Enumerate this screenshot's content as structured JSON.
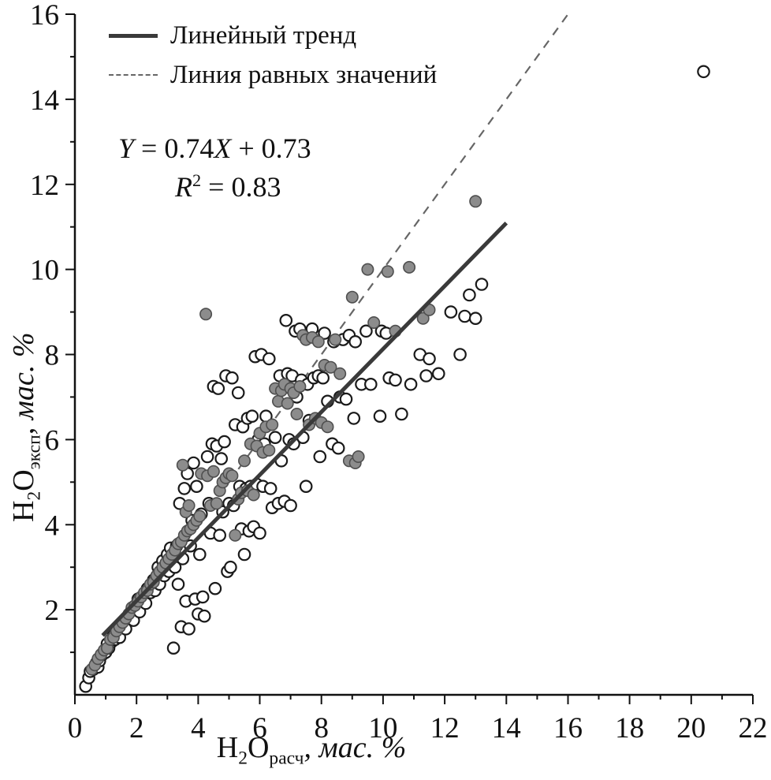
{
  "figure": {
    "legend": {
      "trend_label": "Линейный тренд",
      "identity_label": "Линия равных значений"
    },
    "equation": {
      "y_var": "Y",
      "first": " = 0.74",
      "x_var": "X",
      "second": " + 0.73",
      "r_var": "R",
      "r_exp": "2",
      "r_rest": " = 0.83"
    },
    "x_axis_title": {
      "element": "H",
      "sub_two": "2",
      "oxygen": "O",
      "subscript": "расч",
      "units": ", мас. %"
    },
    "y_axis_title": {
      "element": "H",
      "sub_two": "2",
      "oxygen": "O",
      "subscript": "эксп",
      "units": ", мас. %"
    }
  },
  "chart_data": {
    "type": "scatter",
    "title": "",
    "xlabel": "H2O расч, мас. %",
    "ylabel": "H2O эксп, мас. %",
    "xlim": [
      0,
      22
    ],
    "ylim": [
      0,
      16
    ],
    "grid": false,
    "legend_position": "upper-left",
    "axis_color": "#111111",
    "x_tick_labels": [
      "0",
      "2",
      "4",
      "6",
      "8",
      "10",
      "12",
      "14",
      "16",
      "18",
      "20",
      "22"
    ],
    "y_tick_labels": [
      "2",
      "4",
      "6",
      "8",
      "10",
      "12",
      "14",
      "16"
    ],
    "trend_line": {
      "label": "Линейный тренд",
      "slope": 0.74,
      "intercept": 0.73,
      "r_squared": 0.83,
      "x_range": [
        0.9,
        14.0
      ],
      "color": "#3a3a3a"
    },
    "identity_line": {
      "label": "Линия равных значений",
      "x_range": [
        0.2,
        16.0
      ],
      "style": "dashed",
      "color": "#666666"
    },
    "series": [
      {
        "name": "open_circles",
        "marker": {
          "shape": "circle",
          "fill": "#ffffff",
          "stroke": "#1a1a1a"
        },
        "points": [
          [
            0.35,
            0.2
          ],
          [
            0.45,
            0.4
          ],
          [
            0.5,
            0.55
          ],
          [
            0.6,
            0.6
          ],
          [
            0.7,
            0.75
          ],
          [
            0.75,
            0.65
          ],
          [
            0.8,
            0.8
          ],
          [
            0.9,
            0.95
          ],
          [
            1.0,
            1.0
          ],
          [
            1.05,
            1.2
          ],
          [
            1.1,
            1.1
          ],
          [
            1.2,
            1.25
          ],
          [
            1.25,
            1.4
          ],
          [
            1.3,
            1.3
          ],
          [
            1.4,
            1.5
          ],
          [
            1.45,
            1.35
          ],
          [
            1.5,
            1.6
          ],
          [
            1.6,
            1.7
          ],
          [
            1.65,
            1.55
          ],
          [
            1.7,
            1.8
          ],
          [
            1.8,
            1.9
          ],
          [
            1.85,
            2.0
          ],
          [
            1.9,
            1.75
          ],
          [
            2.0,
            2.1
          ],
          [
            2.05,
            2.25
          ],
          [
            2.1,
            1.95
          ],
          [
            2.2,
            2.3
          ],
          [
            2.3,
            2.15
          ],
          [
            2.35,
            2.5
          ],
          [
            2.45,
            2.4
          ],
          [
            2.55,
            2.7
          ],
          [
            2.6,
            2.45
          ],
          [
            2.7,
            3.0
          ],
          [
            2.75,
            2.6
          ],
          [
            2.85,
            3.15
          ],
          [
            2.9,
            2.8
          ],
          [
            3.0,
            3.3
          ],
          [
            3.05,
            2.9
          ],
          [
            3.1,
            3.45
          ],
          [
            3.2,
            1.1
          ],
          [
            3.25,
            3.0
          ],
          [
            3.3,
            3.5
          ],
          [
            3.35,
            2.6
          ],
          [
            3.4,
            4.5
          ],
          [
            3.45,
            1.6
          ],
          [
            3.5,
            3.2
          ],
          [
            3.55,
            4.85
          ],
          [
            3.6,
            2.2
          ],
          [
            3.65,
            5.2
          ],
          [
            3.7,
            1.55
          ],
          [
            3.75,
            3.5
          ],
          [
            3.8,
            4.1
          ],
          [
            3.85,
            5.45
          ],
          [
            3.9,
            2.25
          ],
          [
            3.95,
            4.9
          ],
          [
            4.0,
            1.9
          ],
          [
            4.05,
            3.3
          ],
          [
            4.1,
            4.25
          ],
          [
            4.15,
            2.3
          ],
          [
            4.2,
            1.85
          ],
          [
            4.3,
            5.6
          ],
          [
            4.35,
            4.5
          ],
          [
            4.4,
            3.8
          ],
          [
            4.45,
            5.9
          ],
          [
            4.5,
            7.25
          ],
          [
            4.55,
            2.5
          ],
          [
            4.6,
            5.85
          ],
          [
            4.65,
            7.2
          ],
          [
            4.7,
            3.75
          ],
          [
            4.75,
            5.55
          ],
          [
            4.8,
            4.3
          ],
          [
            4.85,
            5.95
          ],
          [
            4.9,
            7.5
          ],
          [
            4.95,
            2.9
          ],
          [
            5.0,
            4.5
          ],
          [
            5.05,
            3.0
          ],
          [
            5.1,
            7.45
          ],
          [
            5.15,
            4.45
          ],
          [
            5.2,
            6.35
          ],
          [
            5.3,
            7.1
          ],
          [
            5.35,
            4.9
          ],
          [
            5.4,
            3.9
          ],
          [
            5.45,
            6.3
          ],
          [
            5.5,
            3.3
          ],
          [
            5.55,
            4.85
          ],
          [
            5.6,
            6.5
          ],
          [
            5.65,
            3.85
          ],
          [
            5.7,
            4.9
          ],
          [
            5.75,
            6.55
          ],
          [
            5.8,
            3.95
          ],
          [
            5.85,
            7.95
          ],
          [
            5.9,
            4.95
          ],
          [
            5.95,
            6.0
          ],
          [
            6.0,
            3.8
          ],
          [
            6.05,
            8.0
          ],
          [
            6.1,
            4.9
          ],
          [
            6.15,
            5.9
          ],
          [
            6.2,
            6.55
          ],
          [
            6.3,
            7.9
          ],
          [
            6.35,
            4.85
          ],
          [
            6.4,
            4.4
          ],
          [
            6.5,
            6.05
          ],
          [
            6.6,
            4.5
          ],
          [
            6.65,
            7.5
          ],
          [
            6.7,
            5.5
          ],
          [
            6.8,
            4.55
          ],
          [
            6.85,
            8.8
          ],
          [
            6.9,
            7.55
          ],
          [
            6.95,
            6.0
          ],
          [
            7.0,
            4.45
          ],
          [
            7.05,
            7.5
          ],
          [
            7.1,
            5.9
          ],
          [
            7.15,
            8.55
          ],
          [
            7.2,
            7.0
          ],
          [
            7.3,
            8.6
          ],
          [
            7.35,
            7.4
          ],
          [
            7.4,
            6.05
          ],
          [
            7.5,
            4.9
          ],
          [
            7.55,
            7.3
          ],
          [
            7.6,
            6.45
          ],
          [
            7.7,
            8.6
          ],
          [
            7.75,
            7.45
          ],
          [
            7.9,
            7.5
          ],
          [
            7.95,
            5.6
          ],
          [
            8.05,
            7.45
          ],
          [
            8.1,
            8.5
          ],
          [
            8.2,
            6.9
          ],
          [
            8.35,
            5.9
          ],
          [
            8.4,
            8.3
          ],
          [
            8.55,
            5.8
          ],
          [
            8.6,
            7.0
          ],
          [
            8.7,
            8.35
          ],
          [
            8.8,
            6.95
          ],
          [
            8.9,
            8.45
          ],
          [
            9.05,
            6.5
          ],
          [
            9.1,
            8.3
          ],
          [
            9.3,
            7.3
          ],
          [
            9.45,
            8.55
          ],
          [
            9.6,
            7.3
          ],
          [
            9.9,
            6.55
          ],
          [
            9.95,
            8.55
          ],
          [
            10.1,
            8.5
          ],
          [
            10.2,
            7.45
          ],
          [
            10.4,
            7.4
          ],
          [
            10.6,
            6.6
          ],
          [
            10.9,
            7.3
          ],
          [
            11.2,
            8.0
          ],
          [
            11.4,
            7.5
          ],
          [
            11.5,
            7.9
          ],
          [
            11.8,
            7.55
          ],
          [
            12.2,
            9.0
          ],
          [
            12.5,
            8.0
          ],
          [
            12.65,
            8.9
          ],
          [
            12.8,
            9.4
          ],
          [
            13.0,
            8.85
          ],
          [
            13.2,
            9.65
          ],
          [
            20.4,
            14.65
          ]
        ]
      },
      {
        "name": "filled_circles",
        "marker": {
          "shape": "circle",
          "fill": "#8c8c8c",
          "stroke": "#4f4f4f"
        },
        "points": [
          [
            0.55,
            0.6
          ],
          [
            0.65,
            0.7
          ],
          [
            0.75,
            0.85
          ],
          [
            0.85,
            0.95
          ],
          [
            0.95,
            1.05
          ],
          [
            1.05,
            1.1
          ],
          [
            1.15,
            1.3
          ],
          [
            1.25,
            1.35
          ],
          [
            1.35,
            1.5
          ],
          [
            1.45,
            1.6
          ],
          [
            1.55,
            1.7
          ],
          [
            1.65,
            1.8
          ],
          [
            1.75,
            1.9
          ],
          [
            1.85,
            2.05
          ],
          [
            1.95,
            2.1
          ],
          [
            2.05,
            2.2
          ],
          [
            2.15,
            2.3
          ],
          [
            2.25,
            2.4
          ],
          [
            2.35,
            2.45
          ],
          [
            2.45,
            2.6
          ],
          [
            2.55,
            2.65
          ],
          [
            2.65,
            2.8
          ],
          [
            2.75,
            2.9
          ],
          [
            2.85,
            3.0
          ],
          [
            2.95,
            3.1
          ],
          [
            3.05,
            3.2
          ],
          [
            3.15,
            3.3
          ],
          [
            3.25,
            3.4
          ],
          [
            3.35,
            3.55
          ],
          [
            3.45,
            3.6
          ],
          [
            3.55,
            3.75
          ],
          [
            3.65,
            3.85
          ],
          [
            3.75,
            3.9
          ],
          [
            3.85,
            4.0
          ],
          [
            3.95,
            4.1
          ],
          [
            3.5,
            5.4
          ],
          [
            3.6,
            4.3
          ],
          [
            3.7,
            4.45
          ],
          [
            4.05,
            4.2
          ],
          [
            4.1,
            5.2
          ],
          [
            4.25,
            8.95
          ],
          [
            4.3,
            5.15
          ],
          [
            4.4,
            4.45
          ],
          [
            4.5,
            5.25
          ],
          [
            4.6,
            4.5
          ],
          [
            4.7,
            4.8
          ],
          [
            4.8,
            5.0
          ],
          [
            4.9,
            5.1
          ],
          [
            5.0,
            5.2
          ],
          [
            5.1,
            5.15
          ],
          [
            5.2,
            3.75
          ],
          [
            5.3,
            4.6
          ],
          [
            5.4,
            4.75
          ],
          [
            5.5,
            5.5
          ],
          [
            5.6,
            4.8
          ],
          [
            5.7,
            5.9
          ],
          [
            5.8,
            4.7
          ],
          [
            5.9,
            5.85
          ],
          [
            6.0,
            6.15
          ],
          [
            6.1,
            5.7
          ],
          [
            6.2,
            6.3
          ],
          [
            6.3,
            5.75
          ],
          [
            6.4,
            6.35
          ],
          [
            6.5,
            7.2
          ],
          [
            6.6,
            6.9
          ],
          [
            6.7,
            7.15
          ],
          [
            6.8,
            7.3
          ],
          [
            6.9,
            6.85
          ],
          [
            7.0,
            7.2
          ],
          [
            7.1,
            7.1
          ],
          [
            7.2,
            6.6
          ],
          [
            7.3,
            7.25
          ],
          [
            7.4,
            8.45
          ],
          [
            7.5,
            8.35
          ],
          [
            7.6,
            6.35
          ],
          [
            7.7,
            8.4
          ],
          [
            7.8,
            6.5
          ],
          [
            7.9,
            8.3
          ],
          [
            8.0,
            6.4
          ],
          [
            8.1,
            7.75
          ],
          [
            8.2,
            6.3
          ],
          [
            8.3,
            7.7
          ],
          [
            8.45,
            8.35
          ],
          [
            8.6,
            7.55
          ],
          [
            8.9,
            5.5
          ],
          [
            9.0,
            9.35
          ],
          [
            9.1,
            5.45
          ],
          [
            9.2,
            5.6
          ],
          [
            9.5,
            10.0
          ],
          [
            9.7,
            8.75
          ],
          [
            10.15,
            9.95
          ],
          [
            10.4,
            8.55
          ],
          [
            10.85,
            10.05
          ],
          [
            11.3,
            8.85
          ],
          [
            11.5,
            9.05
          ],
          [
            13.0,
            11.6
          ]
        ]
      }
    ]
  }
}
